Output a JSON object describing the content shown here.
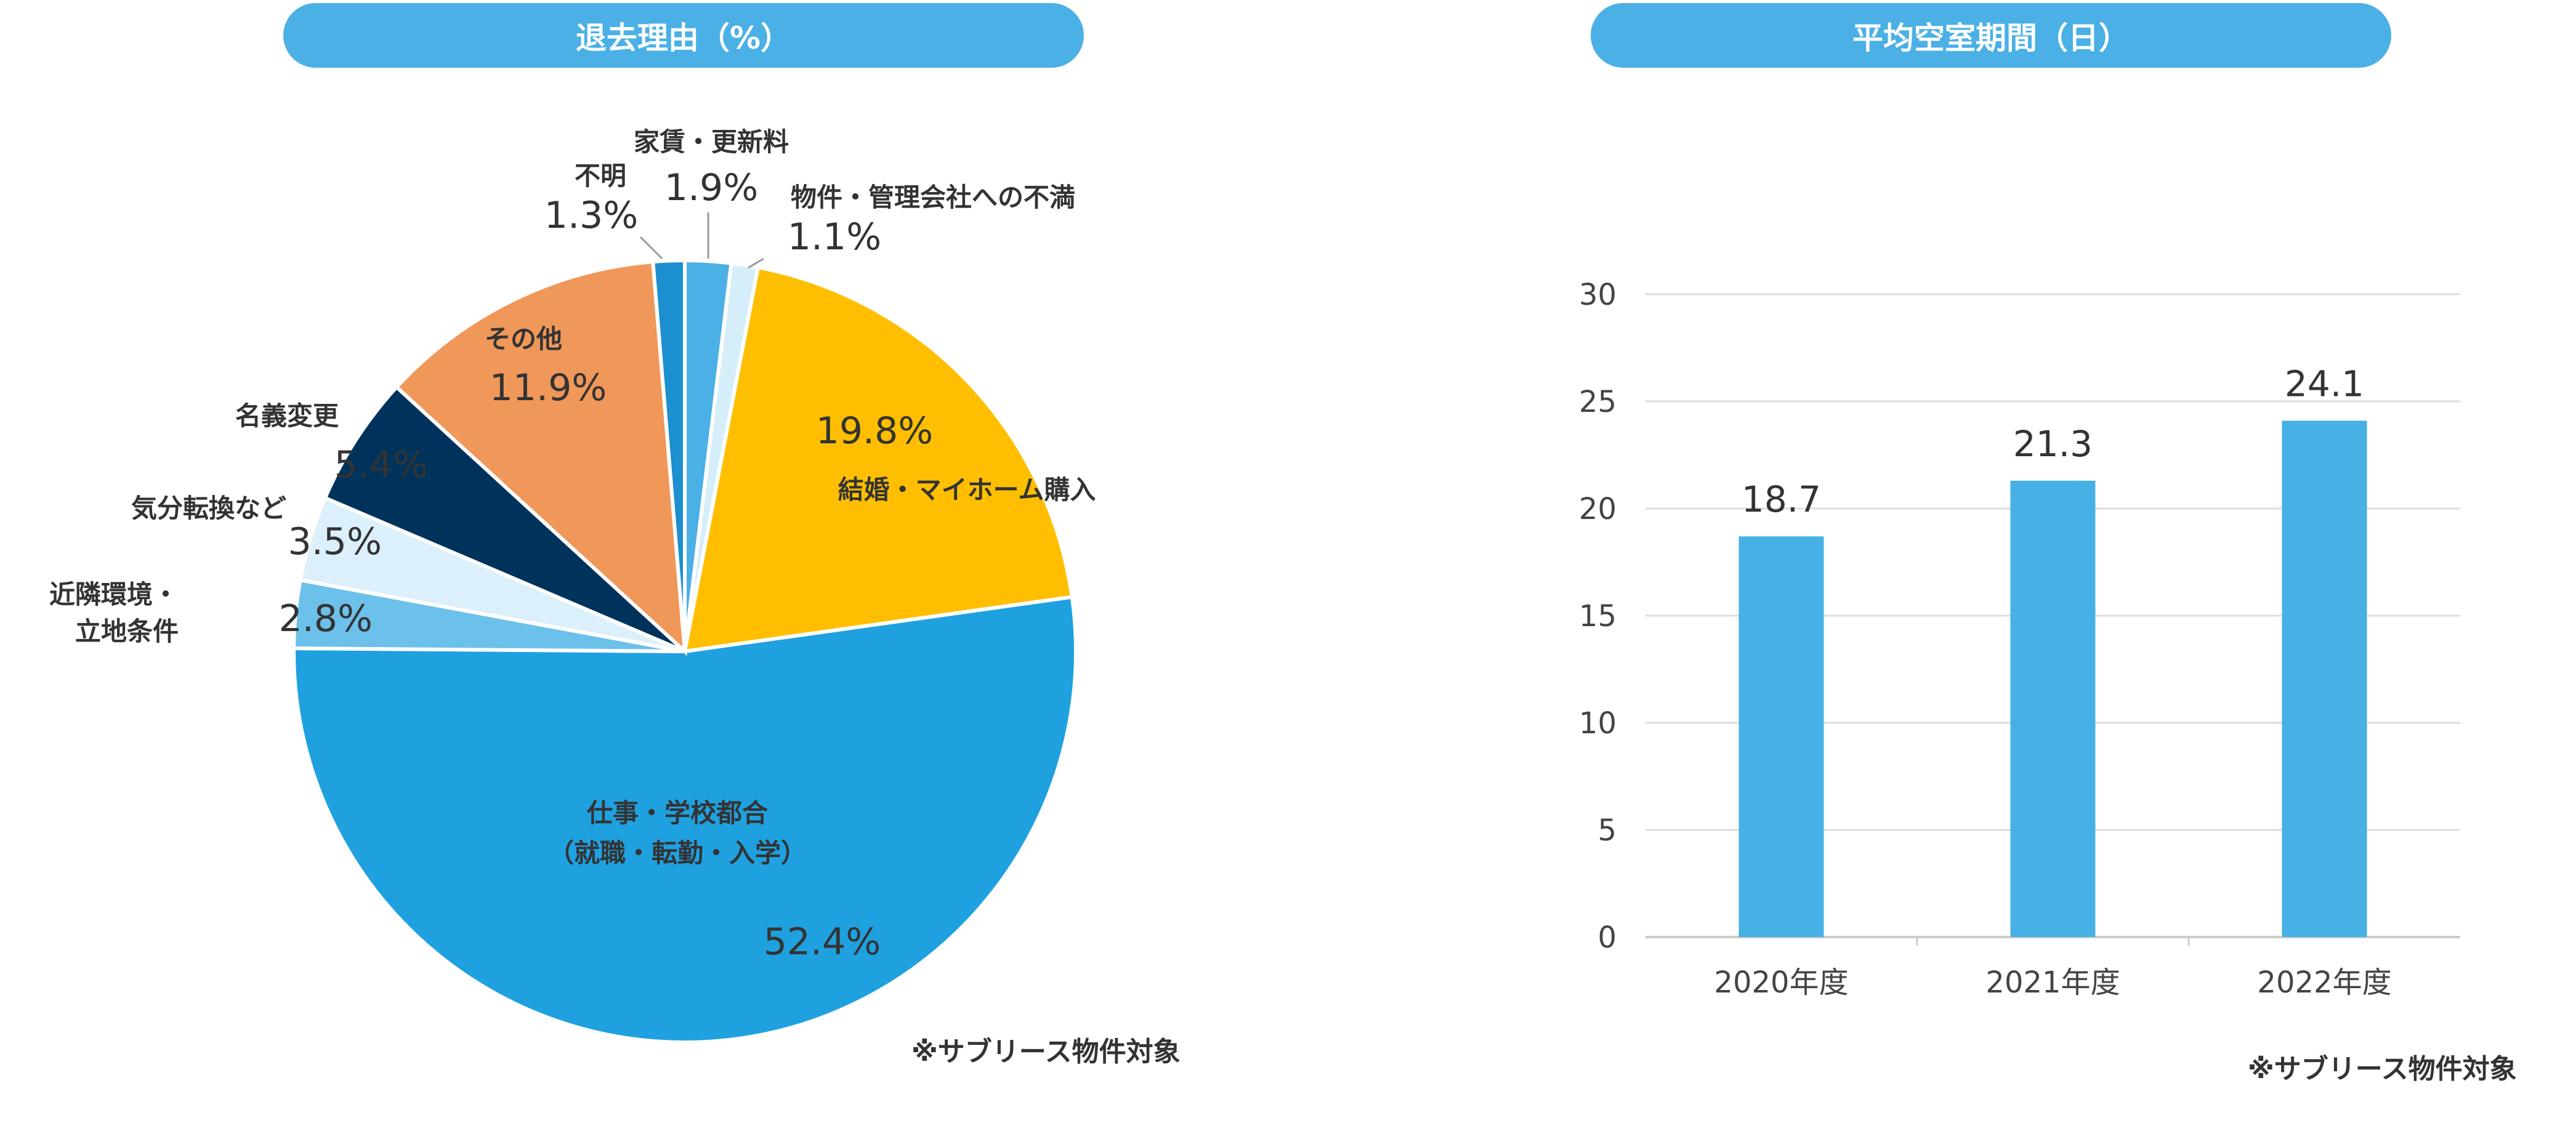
{
  "left_title": "退去理由（%）",
  "right_title": "平均空室期間（日）",
  "note_left": "※サブリース物件対象",
  "note_right": "※サブリース物件対象",
  "colors": {
    "header": "#4ab0e6",
    "bar": "#47b0e5"
  },
  "chart_data": [
    {
      "type": "pie",
      "title": "退去理由（%）",
      "slices": [
        {
          "label": "家賃・更新料",
          "value": 1.9,
          "value_label": "1.9%",
          "color": "#4ab0e6"
        },
        {
          "label": "物件・管理会社への不満",
          "value": 1.1,
          "value_label": "1.1%",
          "color": "#d6eefa"
        },
        {
          "label": "結婚・マイホーム購入",
          "value": 19.8,
          "value_label": "19.8%",
          "color": "#ffbf00"
        },
        {
          "label": "仕事・学校都合（就職・転勤・入学）",
          "label_lines": [
            "仕事・学校都合",
            "（就職・転勤・入学）"
          ],
          "value": 52.4,
          "value_label": "52.4%",
          "color": "#1fa1e0"
        },
        {
          "label": "近隣環境・立地条件",
          "label_lines": [
            "近隣環境・",
            "立地条件"
          ],
          "value": 2.8,
          "value_label": "2.8%",
          "color": "#6cc1ea"
        },
        {
          "label": "気分転換など",
          "value": 3.5,
          "value_label": "3.5%",
          "color": "#dcf0fb"
        },
        {
          "label": "名義変更",
          "value": 5.4,
          "value_label": "5.4%",
          "color": "#00335c"
        },
        {
          "label": "その他",
          "value": 11.9,
          "value_label": "11.9%",
          "color": "#f0975a"
        },
        {
          "label": "不明",
          "value": 1.3,
          "value_label": "1.3%",
          "color": "#1b8fcf"
        }
      ]
    },
    {
      "type": "bar",
      "title": "平均空室期間（日）",
      "categories": [
        "2020年度",
        "2021年度",
        "2022年度"
      ],
      "values": [
        18.7,
        21.3,
        24.1
      ],
      "value_labels": [
        "18.7",
        "21.3",
        "24.1"
      ],
      "ylim": [
        0,
        30
      ],
      "yticks": [
        0,
        5,
        10,
        15,
        20,
        25,
        30
      ],
      "grid": true
    }
  ]
}
